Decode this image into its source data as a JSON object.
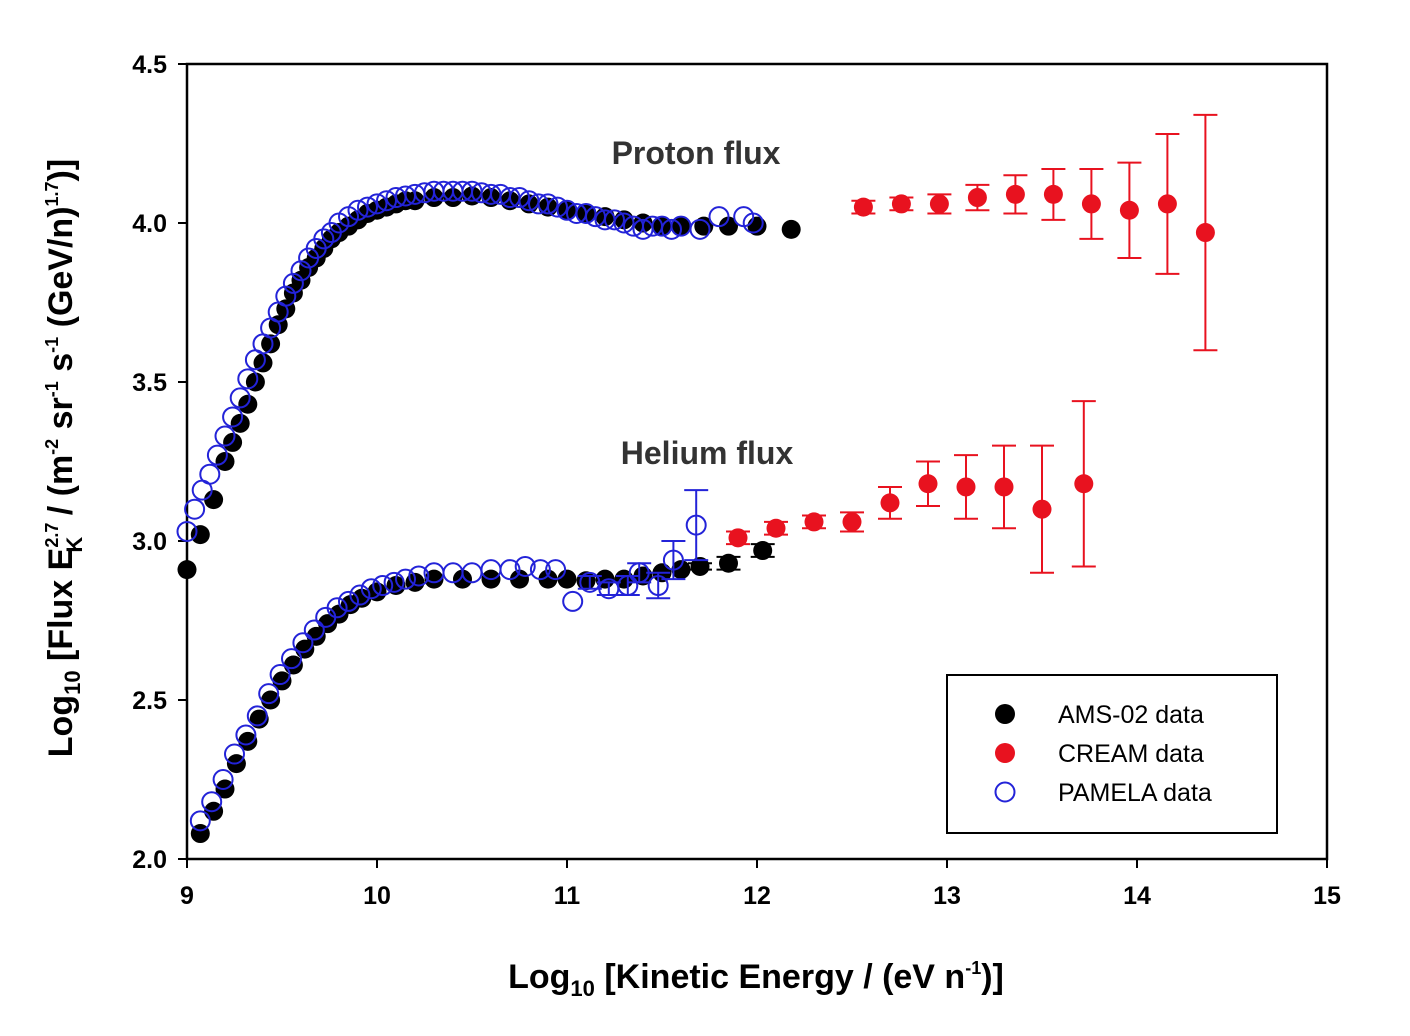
{
  "chart_data": {
    "type": "scatter",
    "x_axis": {
      "label_pre": "Log",
      "label_sub": "10",
      "label_mid": " [Kinetic Energy / (eV n",
      "label_sup": "-1",
      "label_post": ")]",
      "range": [
        9,
        15
      ],
      "ticks": [
        "9",
        "10",
        "11",
        "12",
        "13",
        "14",
        "15"
      ]
    },
    "y_axis": {
      "label_a": "Log",
      "label_a_sub": "10",
      "label_b": " [Flux  E",
      "label_b_sup": "2.7",
      "label_b_sub": "K",
      "label_c": " / (m",
      "label_c_sup": "-2",
      "label_d": " sr",
      "label_d_sup": "-1",
      "label_e": " s",
      "label_e_sup": "-1",
      "label_f": " (GeV/n)",
      "label_f_sup": "1.7",
      "label_g": ")]",
      "range": [
        2.0,
        4.5
      ],
      "ticks": [
        "2.0",
        "2.5",
        "3.0",
        "3.5",
        "4.0",
        "4.5"
      ]
    },
    "annotations": {
      "proton": "Proton flux",
      "helium": "Helium flux"
    },
    "legend": {
      "position": "bottom-right",
      "entries": [
        {
          "label": "AMS-02 data",
          "color": "#000000",
          "marker": "filled-circle"
        },
        {
          "label": "CREAM data",
          "color": "#e8121f",
          "marker": "filled-circle"
        },
        {
          "label": "PAMELA data",
          "color": "#2323d8",
          "marker": "open-circle"
        }
      ]
    },
    "series": [
      {
        "name": "AMS-02 proton",
        "color": "#000000",
        "marker": "filled",
        "points": [
          [
            9.0,
            2.91
          ],
          [
            9.07,
            3.02
          ],
          [
            9.14,
            3.13
          ],
          [
            9.2,
            3.25
          ],
          [
            9.24,
            3.31
          ],
          [
            9.28,
            3.37
          ],
          [
            9.32,
            3.43
          ],
          [
            9.36,
            3.5
          ],
          [
            9.4,
            3.56
          ],
          [
            9.44,
            3.62
          ],
          [
            9.48,
            3.68
          ],
          [
            9.52,
            3.73
          ],
          [
            9.56,
            3.78
          ],
          [
            9.6,
            3.82
          ],
          [
            9.64,
            3.86
          ],
          [
            9.68,
            3.89
          ],
          [
            9.72,
            3.92
          ],
          [
            9.76,
            3.95
          ],
          [
            9.8,
            3.97
          ],
          [
            9.85,
            3.99
          ],
          [
            9.9,
            4.01
          ],
          [
            9.95,
            4.03
          ],
          [
            10.0,
            4.04
          ],
          [
            10.05,
            4.05
          ],
          [
            10.1,
            4.06
          ],
          [
            10.15,
            4.07
          ],
          [
            10.2,
            4.07
          ],
          [
            10.3,
            4.08
          ],
          [
            10.4,
            4.08
          ],
          [
            10.5,
            4.085
          ],
          [
            10.6,
            4.08
          ],
          [
            10.7,
            4.07
          ],
          [
            10.8,
            4.06
          ],
          [
            10.9,
            4.05
          ],
          [
            11.0,
            4.04
          ],
          [
            11.1,
            4.03
          ],
          [
            11.2,
            4.02
          ],
          [
            11.3,
            4.01
          ],
          [
            11.4,
            4.0
          ],
          [
            11.5,
            3.99
          ],
          [
            11.6,
            3.99
          ],
          [
            11.72,
            3.99
          ],
          [
            11.85,
            3.99
          ],
          [
            12.0,
            3.99
          ],
          [
            12.18,
            3.98
          ]
        ]
      },
      {
        "name": "AMS-02 helium",
        "color": "#000000",
        "marker": "filled",
        "points": [
          [
            9.07,
            2.08
          ],
          [
            9.14,
            2.15
          ],
          [
            9.2,
            2.22
          ],
          [
            9.26,
            2.3
          ],
          [
            9.32,
            2.37
          ],
          [
            9.38,
            2.44
          ],
          [
            9.44,
            2.5
          ],
          [
            9.5,
            2.56
          ],
          [
            9.56,
            2.61
          ],
          [
            9.62,
            2.66
          ],
          [
            9.68,
            2.7
          ],
          [
            9.74,
            2.74
          ],
          [
            9.8,
            2.77
          ],
          [
            9.86,
            2.8
          ],
          [
            9.92,
            2.82
          ],
          [
            10.0,
            2.84
          ],
          [
            10.1,
            2.86
          ],
          [
            10.2,
            2.87
          ],
          [
            10.3,
            2.88
          ],
          [
            10.45,
            2.88
          ],
          [
            10.6,
            2.88
          ],
          [
            10.75,
            2.88
          ],
          [
            10.9,
            2.88
          ],
          [
            11.0,
            2.88
          ],
          [
            11.1,
            2.875
          ],
          [
            11.2,
            2.88
          ],
          [
            11.3,
            2.88
          ],
          [
            11.4,
            2.89
          ],
          [
            11.5,
            2.9
          ],
          [
            11.6,
            2.91
          ],
          [
            11.7,
            2.92
          ],
          [
            11.85,
            2.93
          ],
          [
            12.03,
            2.97
          ]
        ],
        "yerr": [
          0,
          0,
          0,
          0,
          0,
          0,
          0,
          0,
          0,
          0,
          0,
          0,
          0,
          0,
          0,
          0,
          0,
          0,
          0,
          0,
          0,
          0,
          0,
          0,
          0,
          0,
          0,
          0,
          0,
          0,
          0.01,
          0.02,
          0.02
        ]
      },
      {
        "name": "CREAM proton",
        "color": "#e8121f",
        "marker": "filled",
        "points": [
          [
            12.56,
            4.05
          ],
          [
            12.76,
            4.06
          ],
          [
            12.96,
            4.06
          ],
          [
            13.16,
            4.08
          ],
          [
            13.36,
            4.09
          ],
          [
            13.56,
            4.09
          ],
          [
            13.76,
            4.06
          ],
          [
            13.96,
            4.04
          ],
          [
            14.16,
            4.06
          ],
          [
            14.36,
            3.97
          ]
        ],
        "yerr": [
          0.02,
          0.02,
          0.03,
          0.04,
          0.06,
          0.08,
          0.11,
          0.15,
          0.22,
          0.37
        ]
      },
      {
        "name": "CREAM helium",
        "color": "#e8121f",
        "marker": "filled",
        "points": [
          [
            11.9,
            3.01
          ],
          [
            12.1,
            3.04
          ],
          [
            12.3,
            3.06
          ],
          [
            12.5,
            3.06
          ],
          [
            12.7,
            3.12
          ],
          [
            12.9,
            3.18
          ],
          [
            13.1,
            3.17
          ],
          [
            13.3,
            3.17
          ],
          [
            13.5,
            3.1
          ],
          [
            13.72,
            3.18
          ]
        ],
        "yerr": [
          0.02,
          0.02,
          0.02,
          0.03,
          0.05,
          0.07,
          0.1,
          0.13,
          0.2,
          0.26
        ]
      },
      {
        "name": "PAMELA proton",
        "color": "#2323d8",
        "marker": "open",
        "points": [
          [
            9.0,
            3.03
          ],
          [
            9.04,
            3.1
          ],
          [
            9.08,
            3.16
          ],
          [
            9.12,
            3.21
          ],
          [
            9.16,
            3.27
          ],
          [
            9.2,
            3.33
          ],
          [
            9.24,
            3.39
          ],
          [
            9.28,
            3.45
          ],
          [
            9.32,
            3.51
          ],
          [
            9.36,
            3.57
          ],
          [
            9.4,
            3.62
          ],
          [
            9.44,
            3.67
          ],
          [
            9.48,
            3.72
          ],
          [
            9.52,
            3.77
          ],
          [
            9.56,
            3.81
          ],
          [
            9.6,
            3.85
          ],
          [
            9.64,
            3.89
          ],
          [
            9.68,
            3.92
          ],
          [
            9.72,
            3.95
          ],
          [
            9.76,
            3.97
          ],
          [
            9.8,
            4.0
          ],
          [
            9.85,
            4.02
          ],
          [
            9.9,
            4.04
          ],
          [
            9.95,
            4.05
          ],
          [
            10.0,
            4.06
          ],
          [
            10.05,
            4.07
          ],
          [
            10.1,
            4.08
          ],
          [
            10.15,
            4.085
          ],
          [
            10.2,
            4.09
          ],
          [
            10.25,
            4.095
          ],
          [
            10.3,
            4.1
          ],
          [
            10.35,
            4.1
          ],
          [
            10.4,
            4.1
          ],
          [
            10.45,
            4.1
          ],
          [
            10.5,
            4.1
          ],
          [
            10.55,
            4.095
          ],
          [
            10.6,
            4.09
          ],
          [
            10.65,
            4.09
          ],
          [
            10.7,
            4.08
          ],
          [
            10.75,
            4.08
          ],
          [
            10.8,
            4.07
          ],
          [
            10.85,
            4.06
          ],
          [
            10.9,
            4.06
          ],
          [
            10.95,
            4.05
          ],
          [
            11.0,
            4.04
          ],
          [
            11.05,
            4.03
          ],
          [
            11.1,
            4.03
          ],
          [
            11.15,
            4.02
          ],
          [
            11.2,
            4.01
          ],
          [
            11.25,
            4.01
          ],
          [
            11.3,
            4.0
          ],
          [
            11.35,
            3.99
          ],
          [
            11.4,
            3.98
          ],
          [
            11.45,
            3.99
          ],
          [
            11.5,
            3.99
          ],
          [
            11.55,
            3.98
          ],
          [
            11.6,
            3.99
          ],
          [
            11.7,
            3.98
          ],
          [
            11.8,
            4.02
          ],
          [
            11.93,
            4.02
          ],
          [
            11.98,
            4.0
          ]
        ]
      },
      {
        "name": "PAMELA helium",
        "color": "#2323d8",
        "marker": "open",
        "points": [
          [
            9.07,
            2.12
          ],
          [
            9.13,
            2.18
          ],
          [
            9.19,
            2.25
          ],
          [
            9.25,
            2.33
          ],
          [
            9.31,
            2.39
          ],
          [
            9.37,
            2.45
          ],
          [
            9.43,
            2.52
          ],
          [
            9.49,
            2.58
          ],
          [
            9.55,
            2.63
          ],
          [
            9.61,
            2.68
          ],
          [
            9.67,
            2.72
          ],
          [
            9.73,
            2.76
          ],
          [
            9.79,
            2.79
          ],
          [
            9.85,
            2.81
          ],
          [
            9.91,
            2.83
          ],
          [
            9.97,
            2.85
          ],
          [
            10.03,
            2.86
          ],
          [
            10.09,
            2.87
          ],
          [
            10.15,
            2.88
          ],
          [
            10.22,
            2.89
          ],
          [
            10.3,
            2.9
          ],
          [
            10.4,
            2.9
          ],
          [
            10.5,
            2.9
          ],
          [
            10.6,
            2.91
          ],
          [
            10.7,
            2.91
          ],
          [
            10.78,
            2.92
          ],
          [
            10.86,
            2.91
          ],
          [
            10.94,
            2.91
          ],
          [
            11.03,
            2.81
          ],
          [
            11.12,
            2.87
          ],
          [
            11.22,
            2.85
          ],
          [
            11.32,
            2.86
          ],
          [
            11.38,
            2.9
          ],
          [
            11.48,
            2.86
          ],
          [
            11.56,
            2.94
          ],
          [
            11.68,
            3.05
          ]
        ],
        "yerr": [
          0,
          0,
          0,
          0,
          0,
          0,
          0,
          0,
          0,
          0,
          0,
          0,
          0,
          0,
          0,
          0,
          0,
          0,
          0,
          0,
          0,
          0,
          0,
          0,
          0,
          0,
          0,
          0,
          0,
          0.02,
          0.02,
          0.03,
          0.03,
          0.04,
          0.06,
          0.11
        ]
      }
    ]
  }
}
